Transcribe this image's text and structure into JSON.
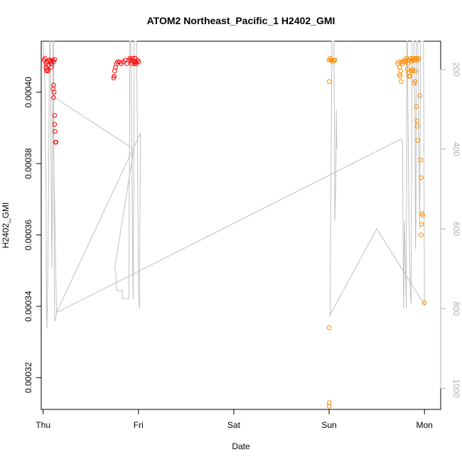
{
  "chart_data": {
    "type": "scatter",
    "title": "ATOM2 Northeast_Pacific_1 H2402_GMI",
    "xlabel": "Date",
    "ylabel": "H2402_GMI",
    "x_ticks": [
      "Thu",
      "Fri",
      "Sat",
      "Sun",
      "Mon"
    ],
    "y_ticks": [
      "0.00032",
      "0.00034",
      "0.00036",
      "0.00038",
      "0.00040"
    ],
    "y_tick_values": [
      0.00032,
      0.00034,
      0.00036,
      0.00038,
      0.0004
    ],
    "right_axis_ticks": [
      "200",
      "400",
      "600",
      "800",
      "1000"
    ],
    "right_axis_tick_values": [
      200,
      400,
      600,
      800,
      1000
    ],
    "xlim": [
      -0.02,
      4.17
    ],
    "ylim": [
      0.0003111,
      0.0004143
    ],
    "right_axis_range": [
      1053,
      129
    ],
    "colors": {
      "series_1": "#ff0000",
      "series_2": "#ff8c00",
      "altitude": "#c0c0c0"
    },
    "series": [
      {
        "color": "#ff0000",
        "points": [
          [
            0.01,
            0.000409
          ],
          [
            0.02,
            0.0004095
          ],
          [
            0.03,
            0.000408
          ],
          [
            0.04,
            0.0004085
          ],
          [
            0.05,
            0.0004075
          ],
          [
            0.06,
            0.0004088
          ],
          [
            0.03,
            0.000407
          ],
          [
            0.04,
            0.0004065
          ],
          [
            0.05,
            0.000406
          ],
          [
            0.035,
            0.000406
          ],
          [
            0.07,
            0.000409
          ],
          [
            0.08,
            0.0004085
          ],
          [
            0.09,
            0.000408
          ],
          [
            0.1,
            0.000409
          ],
          [
            0.11,
            0.0004085
          ],
          [
            0.12,
            0.0004092
          ],
          [
            0.09,
            0.000408
          ],
          [
            0.085,
            0.000407
          ],
          [
            0.105,
            0.000401
          ],
          [
            0.11,
            0.000402
          ],
          [
            0.115,
            0.0004
          ],
          [
            0.11,
            0.0003985
          ],
          [
            0.12,
            0.0003935
          ],
          [
            0.12,
            0.000391
          ],
          [
            0.125,
            0.000389
          ],
          [
            0.13,
            0.000386
          ],
          [
            0.135,
            0.000386
          ],
          [
            0.74,
            0.000404
          ],
          [
            0.745,
            0.0004045
          ],
          [
            0.75,
            0.000406
          ],
          [
            0.76,
            0.000407
          ],
          [
            0.77,
            0.000408
          ],
          [
            0.78,
            0.0004085
          ],
          [
            0.8,
            0.0004085
          ],
          [
            0.82,
            0.000408
          ],
          [
            0.84,
            0.0004085
          ],
          [
            0.86,
            0.000409
          ],
          [
            0.88,
            0.000408
          ],
          [
            0.9,
            0.000409
          ],
          [
            0.91,
            0.0004095
          ],
          [
            0.92,
            0.000409
          ],
          [
            0.93,
            0.000408
          ],
          [
            0.95,
            0.0004085
          ],
          [
            0.96,
            0.000408
          ],
          [
            0.97,
            0.0004085
          ],
          [
            0.98,
            0.000408
          ],
          [
            0.99,
            0.000409
          ],
          [
            1.0,
            0.0004085
          ],
          [
            0.94,
            0.0004095
          ],
          [
            0.965,
            0.0004095
          ]
        ]
      },
      {
        "color": "#ff8c00",
        "points": [
          [
            3.0,
            0.000409
          ],
          [
            3.01,
            0.0004095
          ],
          [
            3.02,
            0.000409
          ],
          [
            3.03,
            0.000409
          ],
          [
            3.04,
            0.0004085
          ],
          [
            3.05,
            0.000409
          ],
          [
            3.06,
            0.000409
          ],
          [
            3.0,
            0.000403
          ],
          [
            3.0,
            0.000334
          ],
          [
            3.0,
            0.000313
          ],
          [
            3.0,
            0.000312
          ],
          [
            3.72,
            0.000408
          ],
          [
            3.73,
            0.0004085
          ],
          [
            3.74,
            0.000407
          ],
          [
            3.75,
            0.000406
          ],
          [
            3.74,
            0.000405
          ],
          [
            3.745,
            0.0004045
          ],
          [
            3.755,
            0.000403
          ],
          [
            3.76,
            0.0004085
          ],
          [
            3.77,
            0.000408
          ],
          [
            3.78,
            0.0004085
          ],
          [
            3.79,
            0.000409
          ],
          [
            3.8,
            0.0004085
          ],
          [
            3.81,
            0.0004095
          ],
          [
            3.82,
            0.000409
          ],
          [
            3.83,
            0.000408
          ],
          [
            3.84,
            0.000409
          ],
          [
            3.85,
            0.0004095
          ],
          [
            3.86,
            0.0004085
          ],
          [
            3.87,
            0.000409
          ],
          [
            3.88,
            0.0004095
          ],
          [
            3.89,
            0.000409
          ],
          [
            3.9,
            0.0004095
          ],
          [
            3.91,
            0.000409
          ],
          [
            3.92,
            0.0004095
          ],
          [
            3.93,
            0.000409
          ],
          [
            3.94,
            0.0004095
          ],
          [
            3.82,
            0.0004065
          ],
          [
            3.83,
            0.0004055
          ],
          [
            3.84,
            0.0004045
          ],
          [
            3.85,
            0.0004045
          ],
          [
            3.86,
            0.000406
          ],
          [
            3.87,
            0.0004065
          ],
          [
            3.88,
            0.000406
          ],
          [
            3.89,
            0.0004025
          ],
          [
            3.905,
            0.000406
          ],
          [
            3.9,
            0.000403
          ],
          [
            3.915,
            0.000396
          ],
          [
            3.92,
            0.000392
          ],
          [
            3.925,
            0.0003905
          ],
          [
            3.93,
            0.0003865
          ],
          [
            3.95,
            0.000399
          ],
          [
            3.96,
            0.000381
          ],
          [
            3.965,
            0.000376
          ],
          [
            3.975,
            0.000366
          ],
          [
            3.98,
            0.0003655
          ],
          [
            3.97,
            0.000363
          ],
          [
            3.965,
            0.00036
          ],
          [
            4.0,
            0.000341
          ]
        ]
      }
    ],
    "altitude_line": {
      "color": "#c0c0c0",
      "points": [
        [
          0.0,
          129
        ],
        [
          0.01,
          180
        ],
        [
          0.02,
          260
        ],
        [
          0.03,
          500
        ],
        [
          0.035,
          800
        ],
        [
          0.04,
          850
        ],
        [
          0.05,
          700
        ],
        [
          0.06,
          400
        ],
        [
          0.065,
          200
        ],
        [
          0.07,
          129
        ],
        [
          0.075,
          129
        ],
        [
          0.08,
          300
        ],
        [
          0.085,
          500
        ],
        [
          0.09,
          700
        ],
        [
          0.095,
          580
        ],
        [
          0.1,
          300
        ],
        [
          0.105,
          129
        ],
        [
          0.11,
          129
        ],
        [
          0.115,
          600
        ],
        [
          0.12,
          830
        ],
        [
          0.13,
          830
        ],
        [
          0.14,
          810
        ],
        [
          0.1,
          260
        ],
        [
          0.12,
          270
        ],
        [
          0.95,
          400
        ],
        [
          0.75,
          700
        ],
        [
          0.76,
          705
        ],
        [
          0.77,
          755
        ],
        [
          0.8,
          755
        ],
        [
          0.83,
          755
        ],
        [
          0.83,
          775
        ],
        [
          0.9,
          775
        ],
        [
          0.91,
          129
        ],
        [
          0.92,
          129
        ],
        [
          0.93,
          400
        ],
        [
          0.94,
          700
        ],
        [
          0.945,
          776
        ],
        [
          0.95,
          500
        ],
        [
          0.955,
          129
        ],
        [
          0.96,
          129
        ],
        [
          0.97,
          129
        ],
        [
          0.98,
          129
        ],
        [
          0.99,
          400
        ],
        [
          1.0,
          760
        ],
        [
          1.01,
          800
        ],
        [
          1.02,
          400
        ],
        [
          1.02,
          380
        ],
        [
          1.02,
          360
        ],
        [
          0.14,
          810
        ],
        [
          3.75,
          375
        ],
        [
          3.76,
          380
        ],
        [
          3.77,
          380
        ],
        [
          3.78,
          800
        ],
        [
          3.79,
          580
        ],
        [
          3.8,
          700
        ],
        [
          3.81,
          800
        ],
        [
          3.815,
          129
        ],
        [
          3.82,
          129
        ],
        [
          3.83,
          400
        ],
        [
          3.84,
          600
        ],
        [
          3.85,
          750
        ],
        [
          3.86,
          790
        ],
        [
          3.865,
          500
        ],
        [
          3.87,
          129
        ],
        [
          3.88,
          129
        ],
        [
          3.89,
          129
        ],
        [
          3.9,
          300
        ],
        [
          3.905,
          650
        ],
        [
          3.91,
          600
        ],
        [
          3.915,
          129
        ],
        [
          3.92,
          129
        ],
        [
          3.93,
          129
        ],
        [
          3.935,
          200
        ],
        [
          3.94,
          400
        ],
        [
          3.95,
          600
        ],
        [
          3.96,
          129
        ],
        [
          3.97,
          129
        ],
        [
          3.98,
          129
        ],
        [
          3.99,
          129
        ],
        [
          4.0,
          790
        ],
        [
          3.5,
          600
        ],
        [
          3.0,
          820
        ],
        [
          3.01,
          815
        ],
        [
          3.02,
          400
        ],
        [
          3.03,
          129
        ],
        [
          3.04,
          129
        ],
        [
          3.05,
          129
        ],
        [
          3.06,
          580
        ],
        [
          3.07,
          480
        ],
        [
          3.075,
          300
        ],
        [
          3.08,
          400
        ]
      ]
    }
  }
}
